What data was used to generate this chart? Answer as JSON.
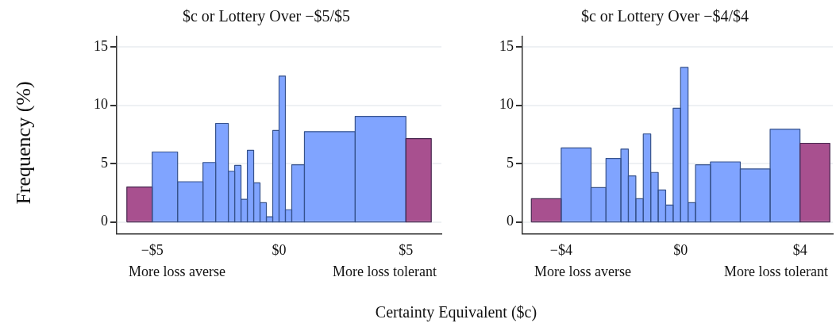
{
  "chart_data": [
    {
      "type": "histogram",
      "title": "$c or Lottery Over −$5/$5",
      "ylabel": "Frequency (%)",
      "xlabel": "Certainty Equivalent ($c)",
      "bins": [
        -6,
        -5,
        -4,
        -3,
        -2.5,
        -2,
        -1.75,
        -1.5,
        -1.25,
        -1,
        -0.75,
        -0.5,
        -0.25,
        0,
        0.25,
        0.5,
        1,
        3,
        5,
        6
      ],
      "values": [
        3.0,
        6.0,
        3.45,
        5.1,
        8.45,
        4.35,
        4.85,
        1.95,
        6.15,
        3.35,
        1.65,
        0.45,
        7.85,
        12.5,
        1.05,
        4.9,
        7.75,
        9.05,
        7.15
      ],
      "colors": [
        "#a8508f",
        "#80a4ff",
        "#80a4ff",
        "#80a4ff",
        "#80a4ff",
        "#80a4ff",
        "#80a4ff",
        "#80a4ff",
        "#80a4ff",
        "#80a4ff",
        "#80a4ff",
        "#80a4ff",
        "#80a4ff",
        "#80a4ff",
        "#80a4ff",
        "#80a4ff",
        "#80a4ff",
        "#80a4ff",
        "#a8508f"
      ],
      "xlim": [
        -6.4,
        6.4
      ],
      "xticks": [
        {
          "value": -5,
          "label": "−$5"
        },
        {
          "value": 0,
          "label": "$0"
        },
        {
          "value": 5,
          "label": "$5"
        }
      ],
      "ylim": [
        -1,
        15.9
      ],
      "yticks": [
        0,
        5,
        10,
        15
      ],
      "grid": "y",
      "legend": false,
      "annotations": [
        "More loss averse",
        "More loss tolerant"
      ]
    },
    {
      "type": "histogram",
      "title": "$c or Lottery Over −$4/$4",
      "bins": [
        -5,
        -4,
        -3,
        -2.5,
        -2,
        -1.75,
        -1.5,
        -1.25,
        -1,
        -0.75,
        -0.5,
        -0.25,
        0,
        0.25,
        0.5,
        1,
        2,
        3,
        4,
        5
      ],
      "values": [
        2.0,
        6.35,
        2.95,
        5.45,
        6.25,
        3.95,
        2.0,
        7.55,
        4.25,
        2.75,
        1.45,
        9.75,
        13.25,
        1.65,
        4.9,
        5.15,
        4.55,
        7.95,
        6.75
      ],
      "colors": [
        "#a8508f",
        "#80a4ff",
        "#80a4ff",
        "#80a4ff",
        "#80a4ff",
        "#80a4ff",
        "#80a4ff",
        "#80a4ff",
        "#80a4ff",
        "#80a4ff",
        "#80a4ff",
        "#80a4ff",
        "#80a4ff",
        "#80a4ff",
        "#80a4ff",
        "#80a4ff",
        "#80a4ff",
        "#80a4ff",
        "#a8508f"
      ],
      "xlim": [
        -5.3,
        5.1
      ],
      "xticks": [
        {
          "value": -4,
          "label": "−$4"
        },
        {
          "value": 0,
          "label": "$0"
        },
        {
          "value": 4,
          "label": "$4"
        }
      ],
      "ylim": [
        -1,
        15.9
      ],
      "yticks": [
        0,
        5,
        10,
        15
      ],
      "grid": "y",
      "legend": false,
      "annotations": [
        "More loss averse",
        "More loss tolerant"
      ]
    }
  ]
}
